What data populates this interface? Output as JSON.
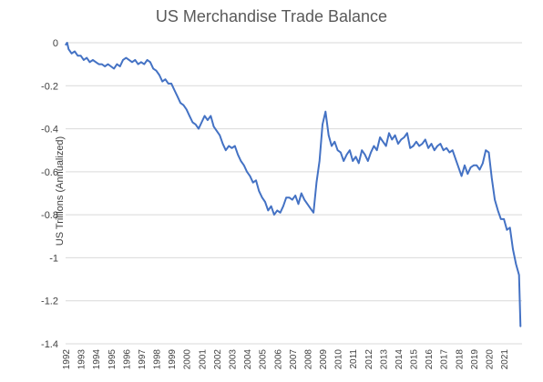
{
  "chart_data": {
    "type": "line",
    "title": "US Merchandise Trade Balance",
    "xlabel": "",
    "ylabel": "US Trillions (Annualized)",
    "ylim": [
      -1.4,
      0
    ],
    "xlim": [
      1992,
      2022.2
    ],
    "yticks": [
      0,
      -0.2,
      -0.4,
      -0.6,
      -0.8,
      -1,
      -1.2,
      -1.4
    ],
    "ytick_labels": [
      "0",
      "-0.2",
      "-0.4",
      "-0.6",
      "-0.8",
      "-1",
      "-1.2",
      "-1.4"
    ],
    "xticks": [
      1992,
      1993,
      1994,
      1995,
      1996,
      1997,
      1998,
      1999,
      2000,
      2001,
      2002,
      2003,
      2004,
      2005,
      2006,
      2007,
      2008,
      2009,
      2010,
      2011,
      2012,
      2013,
      2014,
      2015,
      2016,
      2017,
      2018,
      2019,
      2020,
      2021
    ],
    "xtick_labels": [
      "1992",
      "1993",
      "1994",
      "1995",
      "1996",
      "1997",
      "1998",
      "1999",
      "2000",
      "2001",
      "2002",
      "2003",
      "2004",
      "2005",
      "2006",
      "2007",
      "2008",
      "2009",
      "2010",
      "2011",
      "2012",
      "2013",
      "2014",
      "2015",
      "2016",
      "2017",
      "2018",
      "2019",
      "2020",
      "2021"
    ],
    "grid": "horizontal",
    "line_color": "#4472C4",
    "series": [
      {
        "x": [
          1992.0,
          1992.1,
          1992.2,
          1992.4,
          1992.6,
          1992.8,
          1993.0,
          1993.2,
          1993.4,
          1993.6,
          1993.8,
          1994.0,
          1994.2,
          1994.4,
          1994.6,
          1994.8,
          1995.0,
          1995.2,
          1995.4,
          1995.6,
          1995.8,
          1996.0,
          1996.2,
          1996.4,
          1996.6,
          1996.8,
          1997.0,
          1997.2,
          1997.4,
          1997.6,
          1997.8,
          1998.0,
          1998.2,
          1998.4,
          1998.6,
          1998.8,
          1999.0,
          1999.2,
          1999.4,
          1999.6,
          1999.8,
          2000.0,
          2000.2,
          2000.4,
          2000.6,
          2000.8,
          2001.0,
          2001.2,
          2001.4,
          2001.6,
          2001.8,
          2002.0,
          2002.2,
          2002.4,
          2002.6,
          2002.8,
          2003.0,
          2003.2,
          2003.4,
          2003.6,
          2003.8,
          2004.0,
          2004.2,
          2004.4,
          2004.6,
          2004.8,
          2005.0,
          2005.2,
          2005.4,
          2005.6,
          2005.8,
          2006.0,
          2006.2,
          2006.4,
          2006.6,
          2006.8,
          2007.0,
          2007.2,
          2007.4,
          2007.6,
          2007.8,
          2008.0,
          2008.2,
          2008.4,
          2008.6,
          2008.8,
          2009.0,
          2009.2,
          2009.4,
          2009.6,
          2009.8,
          2010.0,
          2010.2,
          2010.4,
          2010.6,
          2010.8,
          2011.0,
          2011.2,
          2011.4,
          2011.6,
          2011.8,
          2012.0,
          2012.2,
          2012.4,
          2012.6,
          2012.8,
          2013.0,
          2013.2,
          2013.4,
          2013.6,
          2013.8,
          2014.0,
          2014.2,
          2014.4,
          2014.6,
          2014.8,
          2015.0,
          2015.2,
          2015.4,
          2015.6,
          2015.8,
          2016.0,
          2016.2,
          2016.4,
          2016.6,
          2016.8,
          2017.0,
          2017.2,
          2017.4,
          2017.6,
          2017.8,
          2018.0,
          2018.2,
          2018.4,
          2018.6,
          2018.8,
          2019.0,
          2019.2,
          2019.4,
          2019.6,
          2019.8,
          2020.0,
          2020.2,
          2020.4,
          2020.6,
          2020.8,
          2021.0,
          2021.2,
          2021.4,
          2021.6,
          2021.8,
          2022.0,
          2022.1
        ],
        "y": [
          -0.01,
          0.0,
          -0.03,
          -0.05,
          -0.04,
          -0.06,
          -0.06,
          -0.08,
          -0.07,
          -0.09,
          -0.08,
          -0.09,
          -0.1,
          -0.1,
          -0.11,
          -0.1,
          -0.11,
          -0.12,
          -0.1,
          -0.11,
          -0.08,
          -0.07,
          -0.08,
          -0.09,
          -0.08,
          -0.1,
          -0.09,
          -0.1,
          -0.08,
          -0.09,
          -0.12,
          -0.13,
          -0.15,
          -0.18,
          -0.17,
          -0.19,
          -0.19,
          -0.22,
          -0.25,
          -0.28,
          -0.29,
          -0.31,
          -0.34,
          -0.37,
          -0.38,
          -0.4,
          -0.37,
          -0.34,
          -0.36,
          -0.34,
          -0.39,
          -0.41,
          -0.43,
          -0.47,
          -0.5,
          -0.48,
          -0.49,
          -0.48,
          -0.52,
          -0.55,
          -0.57,
          -0.6,
          -0.62,
          -0.65,
          -0.64,
          -0.69,
          -0.72,
          -0.74,
          -0.78,
          -0.76,
          -0.8,
          -0.78,
          -0.79,
          -0.76,
          -0.72,
          -0.72,
          -0.73,
          -0.71,
          -0.75,
          -0.7,
          -0.73,
          -0.75,
          -0.77,
          -0.79,
          -0.65,
          -0.55,
          -0.38,
          -0.32,
          -0.43,
          -0.48,
          -0.46,
          -0.5,
          -0.51,
          -0.55,
          -0.52,
          -0.5,
          -0.55,
          -0.53,
          -0.56,
          -0.5,
          -0.52,
          -0.55,
          -0.51,
          -0.48,
          -0.5,
          -0.44,
          -0.46,
          -0.48,
          -0.42,
          -0.45,
          -0.43,
          -0.47,
          -0.45,
          -0.44,
          -0.42,
          -0.49,
          -0.48,
          -0.46,
          -0.48,
          -0.47,
          -0.45,
          -0.49,
          -0.47,
          -0.5,
          -0.48,
          -0.47,
          -0.5,
          -0.49,
          -0.51,
          -0.5,
          -0.54,
          -0.58,
          -0.62,
          -0.57,
          -0.61,
          -0.58,
          -0.57,
          -0.57,
          -0.59,
          -0.56,
          -0.5,
          -0.51,
          -0.63,
          -0.73,
          -0.78,
          -0.82,
          -0.82,
          -0.87,
          -0.86,
          -0.96,
          -1.03,
          -1.08,
          -1.32
        ]
      }
    ]
  }
}
